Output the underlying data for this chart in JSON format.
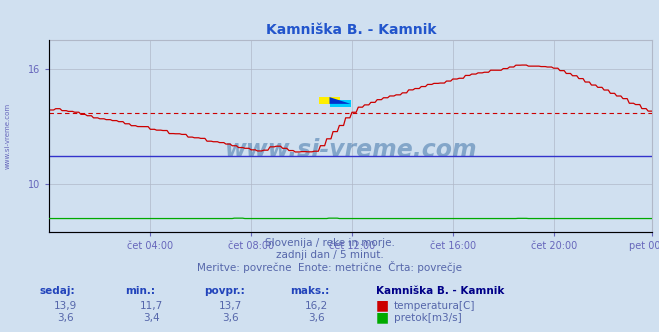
{
  "title": "Kamniška B. - Kamnik",
  "bg_color": "#d0e0f0",
  "plot_bg_color": "#d0e0f0",
  "grid_color": "#b0b8c8",
  "x_tick_labels": [
    "čet 04:00",
    "čet 08:00",
    "čet 12:00",
    "čet 16:00",
    "čet 20:00",
    "pet 00:00"
  ],
  "x_tick_positions": [
    48,
    96,
    144,
    192,
    240,
    287
  ],
  "y_label_color": "#6666bb",
  "title_color": "#2255cc",
  "temp_color": "#cc0000",
  "flow_color": "#00aa00",
  "flow_line_color": "#0000ff",
  "avg_line_color": "#cc0000",
  "avg_line_value": 13.7,
  "temp_min": 11.7,
  "temp_max": 16.2,
  "temp_avg": 13.7,
  "temp_now": 13.9,
  "flow_min": 3.4,
  "flow_max": 3.6,
  "flow_avg": 3.6,
  "flow_now": 3.6,
  "subtitle_line1": "Slovenija / reke in morje.",
  "subtitle_line2": "zadnji dan / 5 minut.",
  "subtitle_line3": "Meritve: povrečne  Enote: metrične  Črta: povrečje",
  "subtitle_color": "#5566aa",
  "watermark_text": "www.si-vreme.com",
  "watermark_color": "#4477aa",
  "left_label": "www.si-vreme.com",
  "ylim_temp": [
    7.5,
    17.5
  ],
  "ylim_flow": [
    0,
    10
  ],
  "n_points": 288,
  "header_color": "#2244bb",
  "val_color": "#5566aa",
  "legend_station": "Kamniška B. - Kamnik"
}
